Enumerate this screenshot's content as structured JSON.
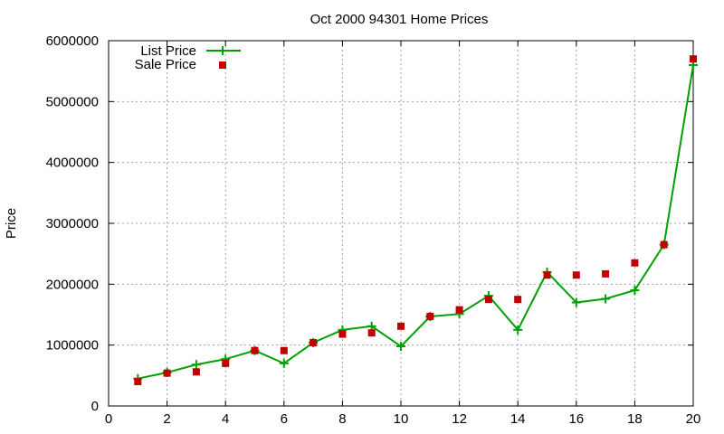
{
  "chart_data": {
    "type": "line",
    "title": "Oct 2000 94301 Home Prices",
    "xlabel": "",
    "ylabel": "Price",
    "xlim": [
      0,
      20
    ],
    "ylim": [
      0,
      6000000
    ],
    "xticks": [
      0,
      2,
      4,
      6,
      8,
      10,
      12,
      14,
      16,
      18,
      20
    ],
    "yticks": [
      0,
      1000000,
      2000000,
      3000000,
      4000000,
      5000000,
      6000000
    ],
    "grid": true,
    "legend_position": "top-left",
    "series": [
      {
        "name": "List Price",
        "style": "line-with-plus-markers",
        "color": "#00a000",
        "x": [
          1,
          2,
          3,
          4,
          5,
          6,
          7,
          8,
          9,
          10,
          11,
          12,
          13,
          14,
          15,
          16,
          17,
          18,
          19,
          20
        ],
        "values": [
          450000,
          550000,
          680000,
          770000,
          910000,
          700000,
          1040000,
          1250000,
          1310000,
          980000,
          1470000,
          1510000,
          1810000,
          1250000,
          2200000,
          1700000,
          1760000,
          1900000,
          2650000,
          5600000
        ]
      },
      {
        "name": "Sale Price",
        "style": "square-markers",
        "color": "#c00000",
        "x": [
          1,
          2,
          3,
          4,
          5,
          6,
          7,
          8,
          9,
          10,
          11,
          12,
          13,
          14,
          15,
          16,
          17,
          18,
          19,
          20
        ],
        "values": [
          400000,
          540000,
          560000,
          700000,
          910000,
          910000,
          1040000,
          1180000,
          1200000,
          1310000,
          1470000,
          1580000,
          1750000,
          1750000,
          2150000,
          2150000,
          2170000,
          2350000,
          2650000,
          5700000
        ]
      }
    ]
  }
}
